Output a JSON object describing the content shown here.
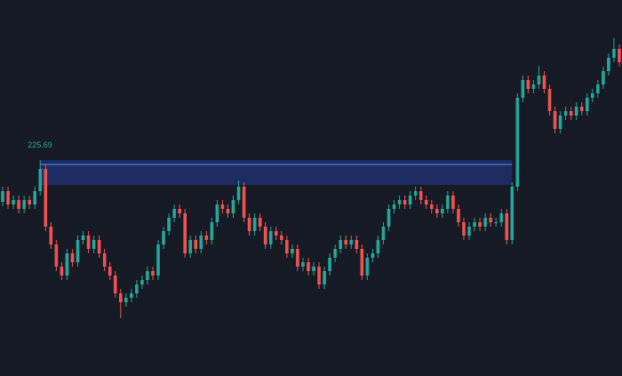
{
  "chart_data": {
    "type": "candlestick",
    "ylim": [
      201.4,
      243.7
    ],
    "up_color": "#26a69a",
    "down_color": "#ef5350",
    "open": [
      221.0,
      222.2,
      220.7,
      221.2,
      220.2,
      221.2,
      220.7,
      222.2,
      224.7,
      218.2,
      216.2,
      213.7,
      212.7,
      215.2,
      214.2,
      216.7,
      217.2,
      215.7,
      216.7,
      215.2,
      213.7,
      212.7,
      210.7,
      209.7,
      210.2,
      210.7,
      211.7,
      212.2,
      213.2,
      212.7,
      216.2,
      217.7,
      219.2,
      220.2,
      219.7,
      215.2,
      216.7,
      215.7,
      217.2,
      216.7,
      218.7,
      220.7,
      220.2,
      219.7,
      221.2,
      222.7,
      219.2,
      217.7,
      219.2,
      218.2,
      216.2,
      217.7,
      217.2,
      216.7,
      215.2,
      215.7,
      213.7,
      214.2,
      213.2,
      213.7,
      211.7,
      213.2,
      214.7,
      215.7,
      216.7,
      216.2,
      216.7,
      215.7,
      212.7,
      214.7,
      215.2,
      216.7,
      218.2,
      220.2,
      220.7,
      221.2,
      220.7,
      221.7,
      222.2,
      221.2,
      220.7,
      220.2,
      219.7,
      220.2,
      221.7,
      220.2,
      218.7,
      217.2,
      218.2,
      218.7,
      218.2,
      219.2,
      218.7,
      218.7,
      219.7,
      216.7,
      222.7,
      232.7,
      234.7,
      233.7,
      234.2,
      235.2,
      233.7,
      231.2,
      229.2,
      230.7,
      231.2,
      230.7,
      231.7,
      231.2,
      232.7,
      233.2,
      234.2,
      235.7,
      237.2,
      238.2
    ],
    "high": [
      222.7,
      222.7,
      221.7,
      221.7,
      221.7,
      221.7,
      222.7,
      225.69,
      225.2,
      218.7,
      216.7,
      214.2,
      215.7,
      215.7,
      217.2,
      217.7,
      217.7,
      217.2,
      217.2,
      215.7,
      214.2,
      213.2,
      211.2,
      210.7,
      211.2,
      212.2,
      212.7,
      213.7,
      213.7,
      216.7,
      218.2,
      219.7,
      220.7,
      220.7,
      220.2,
      217.2,
      217.2,
      217.7,
      217.7,
      219.2,
      221.2,
      221.2,
      220.7,
      221.7,
      223.4,
      223.2,
      219.7,
      219.7,
      219.7,
      218.7,
      218.2,
      218.2,
      217.7,
      217.2,
      216.2,
      216.2,
      214.7,
      214.7,
      214.2,
      214.2,
      213.7,
      215.2,
      216.2,
      217.2,
      217.2,
      217.2,
      217.2,
      216.2,
      215.2,
      215.7,
      217.2,
      218.7,
      220.7,
      221.2,
      221.7,
      221.7,
      222.2,
      222.7,
      222.7,
      221.7,
      221.2,
      220.7,
      220.7,
      222.2,
      222.2,
      220.7,
      219.2,
      218.7,
      219.2,
      219.2,
      219.7,
      219.7,
      219.2,
      220.2,
      220.2,
      223.2,
      233.2,
      235.2,
      235.2,
      234.7,
      236.3,
      235.7,
      234.2,
      231.7,
      231.2,
      231.7,
      231.7,
      232.2,
      232.2,
      233.2,
      233.7,
      234.7,
      236.2,
      237.7,
      239.4,
      238.7
    ],
    "low": [
      220.5,
      220.2,
      220.2,
      219.7,
      219.7,
      220.2,
      220.2,
      221.7,
      217.7,
      215.7,
      213.2,
      212.2,
      212.2,
      213.7,
      213.7,
      216.2,
      215.2,
      215.2,
      214.7,
      213.2,
      212.2,
      210.2,
      207.9,
      209.2,
      209.7,
      210.2,
      211.2,
      211.7,
      212.2,
      212.2,
      215.7,
      217.2,
      218.7,
      219.2,
      214.7,
      214.7,
      215.2,
      215.2,
      216.2,
      216.2,
      218.2,
      219.7,
      219.2,
      219.2,
      220.7,
      218.7,
      217.2,
      217.2,
      217.7,
      215.7,
      215.7,
      216.7,
      216.2,
      214.7,
      214.7,
      213.2,
      213.2,
      212.7,
      212.7,
      211.2,
      211.2,
      212.7,
      214.2,
      215.2,
      215.7,
      215.7,
      215.2,
      212.2,
      212.2,
      214.2,
      214.7,
      216.2,
      217.7,
      219.7,
      220.2,
      220.2,
      220.2,
      221.2,
      220.7,
      220.2,
      219.7,
      219.2,
      219.2,
      219.7,
      219.7,
      218.2,
      216.7,
      216.7,
      217.7,
      217.7,
      217.7,
      218.2,
      218.2,
      218.2,
      216.2,
      216.2,
      222.2,
      232.2,
      233.2,
      233.2,
      233.7,
      233.2,
      230.7,
      228.7,
      228.7,
      230.2,
      230.2,
      230.2,
      230.7,
      230.7,
      232.2,
      232.7,
      233.7,
      235.2,
      236.7,
      236.2
    ],
    "close": [
      222.2,
      220.7,
      221.2,
      220.2,
      221.2,
      220.7,
      222.2,
      224.7,
      218.2,
      216.2,
      213.7,
      212.7,
      215.2,
      214.2,
      216.7,
      217.2,
      215.7,
      216.7,
      215.2,
      213.7,
      212.7,
      210.7,
      209.7,
      210.2,
      210.7,
      211.7,
      212.2,
      213.2,
      212.7,
      216.2,
      217.7,
      219.2,
      220.2,
      219.7,
      215.2,
      216.7,
      215.7,
      217.2,
      216.7,
      218.7,
      220.7,
      220.2,
      219.7,
      221.2,
      222.7,
      219.2,
      217.7,
      219.2,
      218.2,
      216.2,
      217.7,
      217.2,
      216.7,
      215.2,
      215.7,
      213.7,
      214.2,
      213.2,
      213.7,
      211.7,
      213.2,
      214.7,
      215.7,
      216.7,
      216.2,
      216.7,
      215.7,
      212.7,
      214.7,
      215.2,
      216.7,
      218.2,
      220.2,
      220.7,
      221.2,
      220.7,
      221.7,
      222.2,
      221.2,
      220.7,
      220.2,
      219.7,
      220.2,
      221.7,
      220.2,
      218.7,
      217.2,
      218.2,
      218.7,
      218.2,
      219.2,
      218.7,
      218.7,
      219.7,
      216.7,
      222.7,
      232.7,
      234.7,
      233.7,
      234.2,
      235.2,
      233.7,
      231.2,
      229.2,
      230.7,
      231.2,
      230.7,
      231.7,
      231.2,
      232.7,
      233.2,
      234.2,
      235.7,
      237.2,
      238.2,
      236.7
    ],
    "zone": {
      "top": 225.69,
      "bottom": 222.9,
      "line": 225.2,
      "start": 7,
      "end": 95,
      "fill": "#1e2f6e",
      "line_color": "#5d8df0",
      "label_color": "#26a69a"
    }
  }
}
